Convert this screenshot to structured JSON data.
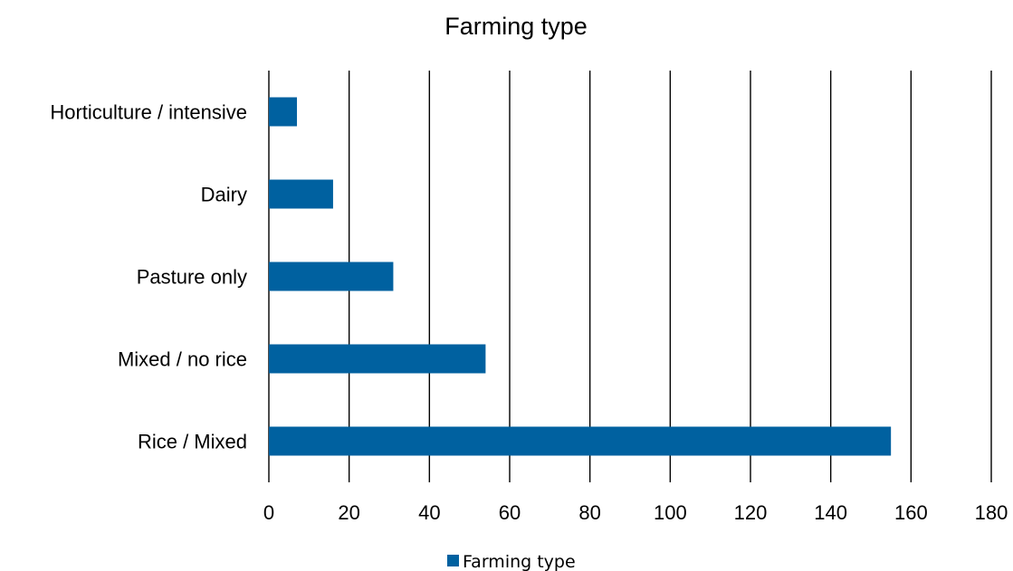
{
  "chart_data": {
    "type": "bar",
    "orientation": "horizontal",
    "title": "Farming type",
    "categories": [
      "Rice / Mixed",
      "Mixed / no rice",
      "Pasture only",
      "Dairy",
      "Horticulture / intensive"
    ],
    "series": [
      {
        "name": "Farming type",
        "values": [
          155,
          54,
          31,
          16,
          7
        ],
        "color": "#0061a0"
      }
    ],
    "xlim": [
      0,
      180
    ],
    "xticks": [
      "0",
      "20",
      "40",
      "60",
      "80",
      "100",
      "120",
      "140",
      "160",
      "180"
    ],
    "xlabel": "",
    "ylabel": "",
    "grid": "vertical",
    "legend": "bottom"
  }
}
